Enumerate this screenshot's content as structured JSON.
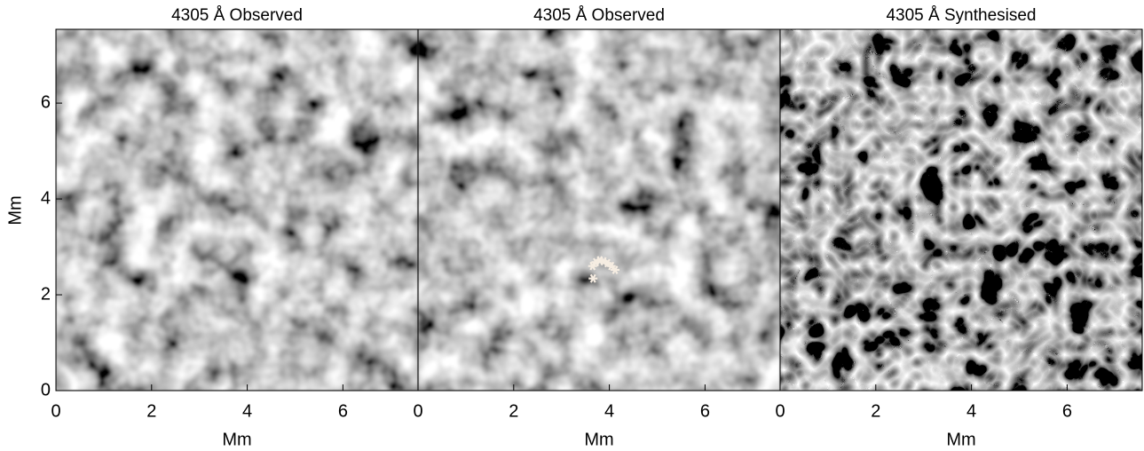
{
  "chart_data": [
    {
      "type": "image",
      "title": "4305 Å Observed",
      "xlabel": "Mm",
      "ylabel": "Mm",
      "xlim": [
        0,
        7.57
      ],
      "ylim": [
        0,
        7.54
      ],
      "xticks": [
        0,
        2,
        4,
        6
      ],
      "yticks": [
        0,
        2,
        4,
        6
      ]
    },
    {
      "type": "image",
      "title": "4305 Å Observed",
      "xlabel": "Mm",
      "xlim": [
        0,
        7.57
      ],
      "ylim": [
        0,
        7.54
      ],
      "xticks": [
        0,
        2,
        4,
        6
      ],
      "markers": {
        "x": [
          3.65,
          3.72,
          3.8,
          3.88,
          3.96,
          4.04,
          4.12,
          3.66
        ],
        "y": [
          2.6,
          2.68,
          2.72,
          2.7,
          2.66,
          2.6,
          2.52,
          2.34
        ]
      }
    },
    {
      "type": "image",
      "title": "4305 Å Synthesised",
      "xlabel": "Mm",
      "xlim": [
        0,
        7.57
      ],
      "ylim": [
        0,
        7.54
      ],
      "xticks": [
        0,
        2,
        4,
        6
      ]
    }
  ]
}
